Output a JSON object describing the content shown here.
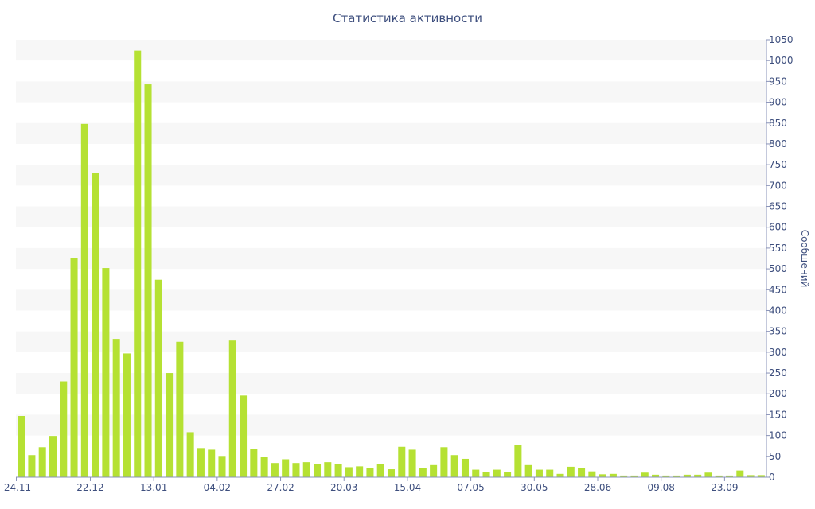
{
  "chart_data": {
    "type": "bar",
    "title": "Статистика активности",
    "xlabel": "",
    "ylabel": "Сообщений",
    "ylim": [
      0,
      1050
    ],
    "y_ticks": [
      0,
      50,
      100,
      150,
      200,
      250,
      300,
      350,
      400,
      450,
      500,
      550,
      600,
      650,
      700,
      750,
      800,
      850,
      900,
      950,
      1000,
      1050
    ],
    "x_tick_labels": [
      {
        "index": 0,
        "label": "24.11"
      },
      {
        "index": 7,
        "label": "22.12"
      },
      {
        "index": 13,
        "label": "13.01"
      },
      {
        "index": 19,
        "label": "04.02"
      },
      {
        "index": 25,
        "label": "27.02"
      },
      {
        "index": 31,
        "label": "20.03"
      },
      {
        "index": 37,
        "label": "15.04"
      },
      {
        "index": 43,
        "label": "07.05"
      },
      {
        "index": 49,
        "label": "30.05"
      },
      {
        "index": 55,
        "label": "28.06"
      },
      {
        "index": 61,
        "label": "09.08"
      },
      {
        "index": 67,
        "label": "23.09"
      }
    ],
    "grid": "alternating horizontal bands",
    "y_axis_position": "right",
    "bar_color": "#b5e133",
    "values": [
      147,
      53,
      72,
      99,
      230,
      525,
      848,
      730,
      502,
      332,
      297,
      1024,
      943,
      474,
      250,
      325,
      108,
      70,
      66,
      51,
      328,
      196,
      67,
      48,
      34,
      43,
      34,
      36,
      31,
      36,
      31,
      24,
      26,
      21,
      32,
      19,
      73,
      66,
      21,
      29,
      72,
      53,
      44,
      18,
      13,
      18,
      13,
      78,
      29,
      18,
      18,
      8,
      25,
      22,
      14,
      7,
      8,
      4,
      4,
      11,
      6,
      4,
      4,
      6,
      6,
      11,
      4,
      4,
      16,
      5,
      5
    ]
  }
}
